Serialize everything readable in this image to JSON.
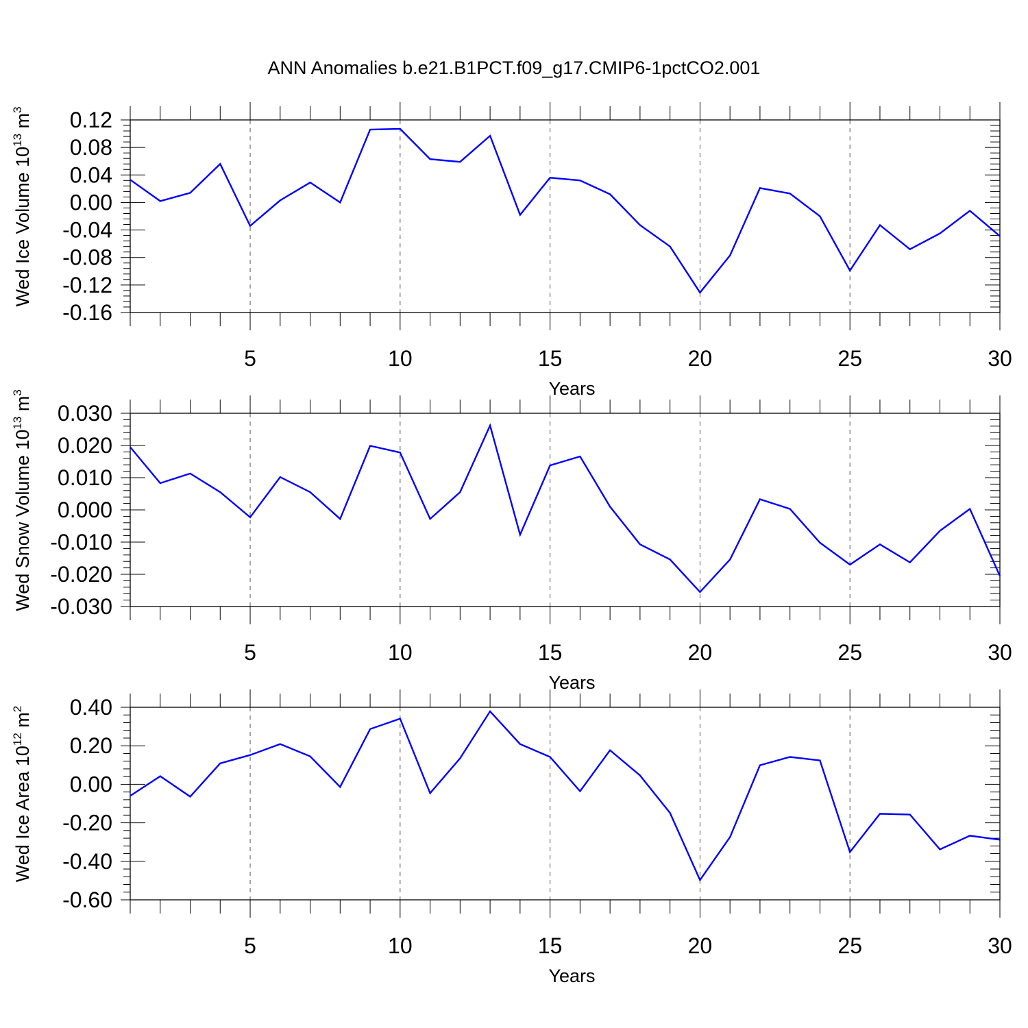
{
  "title": "ANN Anomalies b.e21.B1PCT.f09_g17.CMIP6-1pctCO2.001",
  "series_color": "#0000ff",
  "chart_data": [
    {
      "type": "line",
      "xlabel": "Years",
      "ylabel": "Wed Ice Volume 10",
      "ylabel_exp": "13",
      "ylabel_unit": " m",
      "ylabel_unit_exp": "3",
      "xlim": [
        1,
        30
      ],
      "ylim": [
        -0.16,
        0.12
      ],
      "x_ticks": [
        5,
        10,
        15,
        20,
        25,
        30
      ],
      "x_tick_labels": [
        "5",
        "10",
        "15",
        "20",
        "25",
        "30"
      ],
      "y_ticks": [
        -0.16,
        -0.12,
        -0.08,
        -0.04,
        0.0,
        0.04,
        0.08,
        0.12
      ],
      "y_tick_labels": [
        "-0.16",
        "-0.12",
        "-0.08",
        "-0.04",
        "0.00",
        "0.04",
        "0.08",
        "0.12"
      ],
      "grid": "dashed vertical at major x ticks",
      "x": [
        1,
        2,
        3,
        4,
        5,
        6,
        7,
        8,
        9,
        10,
        11,
        12,
        13,
        14,
        15,
        16,
        17,
        18,
        19,
        20,
        21,
        22,
        23,
        24,
        25,
        26,
        27,
        28,
        29,
        30
      ],
      "values": [
        0.033,
        0.002,
        0.014,
        0.056,
        -0.034,
        0.003,
        0.029,
        0.0,
        0.106,
        0.107,
        0.063,
        0.059,
        0.097,
        -0.018,
        0.036,
        0.032,
        0.012,
        -0.033,
        -0.064,
        -0.131,
        -0.077,
        0.021,
        0.013,
        -0.02,
        -0.099,
        -0.033,
        -0.068,
        -0.045,
        -0.012,
        -0.049
      ]
    },
    {
      "type": "line",
      "xlabel": "Years",
      "ylabel": "Wed Snow Volume 10",
      "ylabel_exp": "13",
      "ylabel_unit": " m",
      "ylabel_unit_exp": "3",
      "xlim": [
        1,
        30
      ],
      "ylim": [
        -0.03,
        0.03
      ],
      "x_ticks": [
        5,
        10,
        15,
        20,
        25,
        30
      ],
      "x_tick_labels": [
        "5",
        "10",
        "15",
        "20",
        "25",
        "30"
      ],
      "y_ticks": [
        -0.03,
        -0.02,
        -0.01,
        0.0,
        0.01,
        0.02,
        0.03
      ],
      "y_tick_labels": [
        "-0.030",
        "-0.020",
        "-0.010",
        "0.000",
        "0.010",
        "0.020",
        "0.030"
      ],
      "grid": "dashed vertical at major x ticks",
      "x": [
        1,
        2,
        3,
        4,
        5,
        6,
        7,
        8,
        9,
        10,
        11,
        12,
        13,
        14,
        15,
        16,
        17,
        18,
        19,
        20,
        21,
        22,
        23,
        24,
        25,
        26,
        27,
        28,
        29,
        30
      ],
      "values": [
        0.0195,
        0.0083,
        0.0113,
        0.0055,
        -0.0023,
        0.0102,
        0.0055,
        -0.0028,
        0.0199,
        0.0178,
        -0.0028,
        0.0055,
        0.0262,
        -0.0077,
        0.0138,
        0.0166,
        0.001,
        -0.0107,
        -0.0154,
        -0.0255,
        -0.0154,
        0.0033,
        0.0003,
        -0.0102,
        -0.017,
        -0.0107,
        -0.0163,
        -0.0065,
        0.0003,
        -0.0205
      ]
    },
    {
      "type": "line",
      "xlabel": "Years",
      "ylabel": "Wed Ice Area 10",
      "ylabel_exp": "12",
      "ylabel_unit": " m",
      "ylabel_unit_exp": "2",
      "xlim": [
        1,
        30
      ],
      "ylim": [
        -0.6,
        0.4
      ],
      "x_ticks": [
        5,
        10,
        15,
        20,
        25,
        30
      ],
      "x_tick_labels": [
        "5",
        "10",
        "15",
        "20",
        "25",
        "30"
      ],
      "y_ticks": [
        -0.6,
        -0.4,
        -0.2,
        0.0,
        0.2,
        0.4
      ],
      "y_tick_labels": [
        "-0.60",
        "-0.40",
        "-0.20",
        "0.00",
        "0.20",
        "0.40"
      ],
      "grid": "dashed vertical at major x ticks",
      "x": [
        1,
        2,
        3,
        4,
        5,
        6,
        7,
        8,
        9,
        10,
        11,
        12,
        13,
        14,
        15,
        16,
        17,
        18,
        19,
        20,
        21,
        22,
        23,
        24,
        25,
        26,
        27,
        28,
        29,
        30
      ],
      "values": [
        -0.06,
        0.042,
        -0.064,
        0.109,
        0.152,
        0.209,
        0.145,
        -0.014,
        0.287,
        0.341,
        -0.046,
        0.135,
        0.379,
        0.209,
        0.142,
        -0.036,
        0.177,
        0.046,
        -0.149,
        -0.497,
        -0.274,
        0.099,
        0.142,
        0.124,
        -0.352,
        -0.153,
        -0.157,
        -0.338,
        -0.267,
        -0.288
      ]
    }
  ]
}
